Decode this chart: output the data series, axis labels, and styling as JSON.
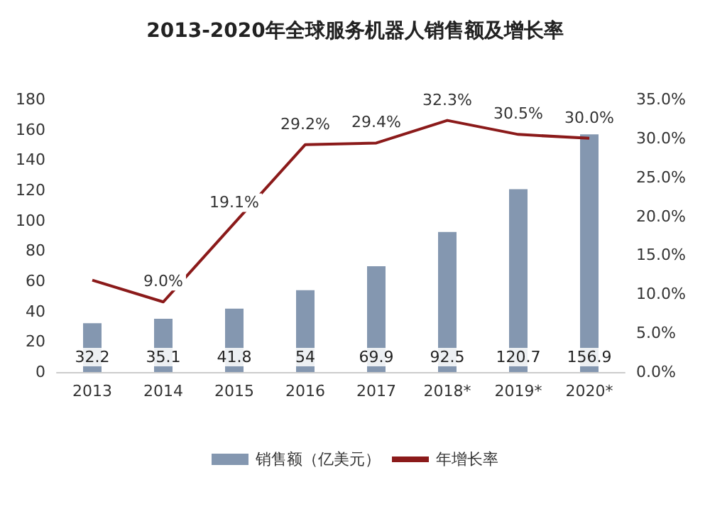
{
  "chart_data": {
    "type": "bar",
    "title": "2013-2020年全球服务机器人销售额及增长率",
    "categories": [
      "2013",
      "2014",
      "2015",
      "2016",
      "2017",
      "2018*",
      "2019*",
      "2020*"
    ],
    "series": [
      {
        "name": "销售额（亿美元）",
        "color": "#8497b0",
        "values": [
          32.2,
          35.1,
          41.8,
          54,
          69.9,
          92.5,
          120.7,
          156.9
        ],
        "data_labels": true
      },
      {
        "name": "年增长率",
        "type": "line",
        "axis": "y2",
        "color": "#8b1a1a",
        "values": [
          11.8,
          9.0,
          19.1,
          29.2,
          29.4,
          32.3,
          30.5,
          30.0
        ],
        "value_labels": [
          null,
          "9.0%",
          "19.1%",
          "29.2%",
          "29.4%",
          "32.3%",
          "30.5%",
          "30.0%"
        ]
      }
    ],
    "ylim": [
      0,
      180
    ],
    "yticks": [
      0,
      20,
      40,
      60,
      80,
      100,
      120,
      140,
      160,
      180
    ],
    "y2lim": [
      0,
      35
    ],
    "y2ticks": [
      {
        "value": 0,
        "label": "0.0%"
      },
      {
        "value": 5,
        "label": "5.0%"
      },
      {
        "value": 10,
        "label": "10.0%"
      },
      {
        "value": 15,
        "label": "15.0%"
      },
      {
        "value": 20,
        "label": "20.0%"
      },
      {
        "value": 25,
        "label": "25.0%"
      },
      {
        "value": 30,
        "label": "30.0%"
      },
      {
        "value": 35,
        "label": "35.0%"
      }
    ],
    "grid": false,
    "legend": "bottom",
    "marker": "none"
  }
}
